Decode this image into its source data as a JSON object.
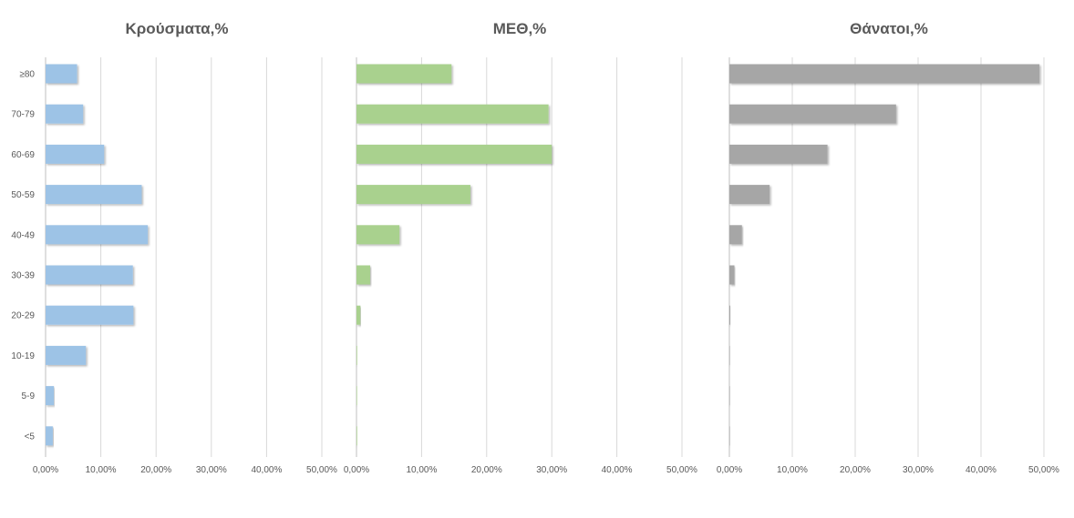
{
  "chart_data": [
    {
      "type": "bar",
      "orientation": "horizontal",
      "title": "Κρούσματα,%",
      "categories": [
        "≥80",
        "70-79",
        "60-69",
        "50-59",
        "40-49",
        "30-39",
        "20-29",
        "10-19",
        "5-9",
        "<5"
      ],
      "values": [
        5.7,
        6.8,
        10.6,
        17.4,
        18.5,
        15.8,
        15.9,
        7.3,
        1.5,
        1.3
      ],
      "xlim": [
        0,
        50
      ],
      "xticks": [
        "0,00%",
        "10,00%",
        "20,00%",
        "30,00%",
        "40,00%",
        "50,00%"
      ],
      "color": "#9dc3e6",
      "grid": true
    },
    {
      "type": "bar",
      "orientation": "horizontal",
      "title": "ΜΕΘ,%",
      "categories": [
        "≥80",
        "70-79",
        "60-69",
        "50-59",
        "40-49",
        "30-39",
        "20-29",
        "10-19",
        "5-9",
        "<5"
      ],
      "values": [
        14.6,
        29.5,
        30.0,
        17.5,
        6.6,
        2.1,
        0.6,
        0.1,
        0.05,
        0.1
      ],
      "xlim": [
        0,
        50
      ],
      "xticks": [
        "0,00%",
        "10,00%",
        "20,00%",
        "30,00%",
        "40,00%",
        "50,00%"
      ],
      "color": "#a9d18e",
      "grid": true
    },
    {
      "type": "bar",
      "orientation": "horizontal",
      "title": "Θάνατοι,%",
      "categories": [
        "≥80",
        "70-79",
        "60-69",
        "50-59",
        "40-49",
        "30-39",
        "20-29",
        "10-19",
        "5-9",
        "<5"
      ],
      "values": [
        49.3,
        26.5,
        15.6,
        6.4,
        2.0,
        0.8,
        0.15,
        0.05,
        0.03,
        0.05
      ],
      "xlim": [
        0,
        50
      ],
      "xticks": [
        "0,00%",
        "10,00%",
        "20,00%",
        "30,00%",
        "40,00%",
        "50,00%"
      ],
      "color": "#a6a6a6",
      "grid": true
    }
  ]
}
